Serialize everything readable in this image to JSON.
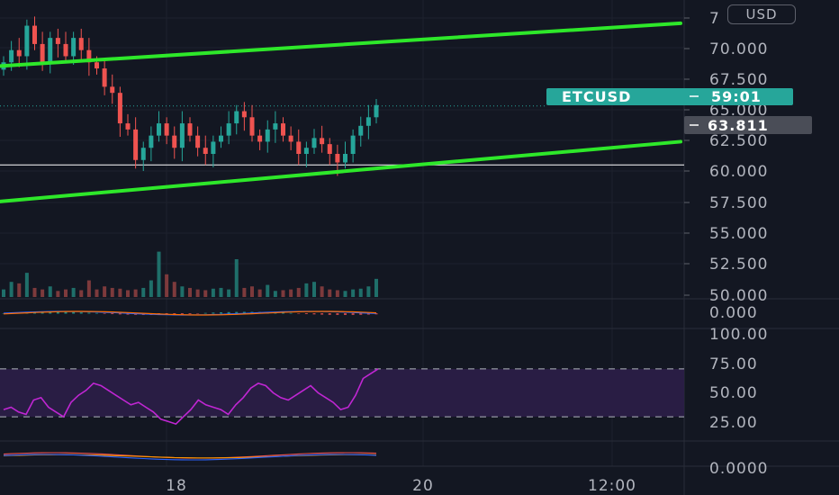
{
  "currency_button": "USD",
  "chart_data": [
    {
      "type": "candlestick",
      "symbol_tag": "ETCUSD",
      "countdown": "59:01",
      "current_price_label": "63.811",
      "price_axis_ticks": [
        "7",
        "70.000",
        "67.500",
        "65.000",
        "62.500",
        "60.000",
        "57.500",
        "55.000",
        "52.500",
        "50.000"
      ],
      "time_ticks": [
        "18",
        "20",
        "12:00"
      ],
      "ylim": [
        50,
        73
      ],
      "support_level": 60.6,
      "channel_upper": {
        "from": 68.7,
        "to": 72.2
      },
      "channel_lower": {
        "from": 57.6,
        "to": 62.5
      },
      "colors": {
        "up": "#26a69a",
        "down": "#ef5350",
        "channel": "#2ee82a",
        "tag": "#26a69a"
      },
      "candles_approx": [
        69,
        70,
        69.5,
        72,
        70.5,
        69,
        71,
        70.5,
        69.5,
        71,
        70,
        69,
        68.5,
        67,
        66.5,
        64,
        63.5,
        61,
        62,
        63,
        64,
        63,
        62,
        64,
        63,
        62,
        61.5,
        62.5,
        63,
        64,
        65,
        64.5,
        63,
        62.5,
        63.5,
        64,
        63,
        62.5,
        61.5,
        62,
        62.8,
        62.3,
        61.5,
        60.8,
        61.5,
        63,
        63.8,
        64.5,
        65.5
      ]
    },
    {
      "type": "bar",
      "name": "volume",
      "ylim": [
        0,
        100
      ],
      "values_approx": [
        10,
        20,
        18,
        32,
        12,
        10,
        14,
        8,
        10,
        12,
        9,
        22,
        10,
        14,
        12,
        11,
        9,
        10,
        12,
        22,
        60,
        30,
        20,
        14,
        12,
        10,
        9,
        11,
        12,
        10,
        50,
        12,
        14,
        10,
        16,
        8,
        9,
        10,
        12,
        18,
        20,
        14,
        10,
        9,
        8,
        10,
        11,
        14,
        24
      ]
    },
    {
      "type": "line",
      "name": "macd",
      "ylabel_ticks": [
        "0.000"
      ],
      "series_colors": [
        "#2962ff",
        "#ff6d00"
      ]
    },
    {
      "type": "line",
      "name": "rsi",
      "ylim": [
        0,
        100
      ],
      "levels": [
        30,
        70
      ],
      "ylabel_ticks": [
        "100.00",
        "75.00",
        "50.00",
        "25.00"
      ],
      "values_approx": [
        36,
        38,
        34,
        32,
        44,
        46,
        38,
        34,
        30,
        42,
        48,
        52,
        58,
        56,
        52,
        48,
        44,
        40,
        42,
        38,
        34,
        28,
        26,
        24,
        30,
        36,
        44,
        40,
        38,
        36,
        32,
        40,
        46,
        54,
        58,
        56,
        50,
        46,
        44,
        48,
        52,
        56,
        50,
        46,
        42,
        36,
        38,
        48,
        62,
        66,
        70
      ],
      "line_color": "#c026d3"
    },
    {
      "type": "line",
      "name": "dmi",
      "ylabel_ticks": [
        "0.0000"
      ],
      "series_colors": [
        "#ef5350",
        "#ff9800",
        "#2962ff"
      ]
    }
  ]
}
